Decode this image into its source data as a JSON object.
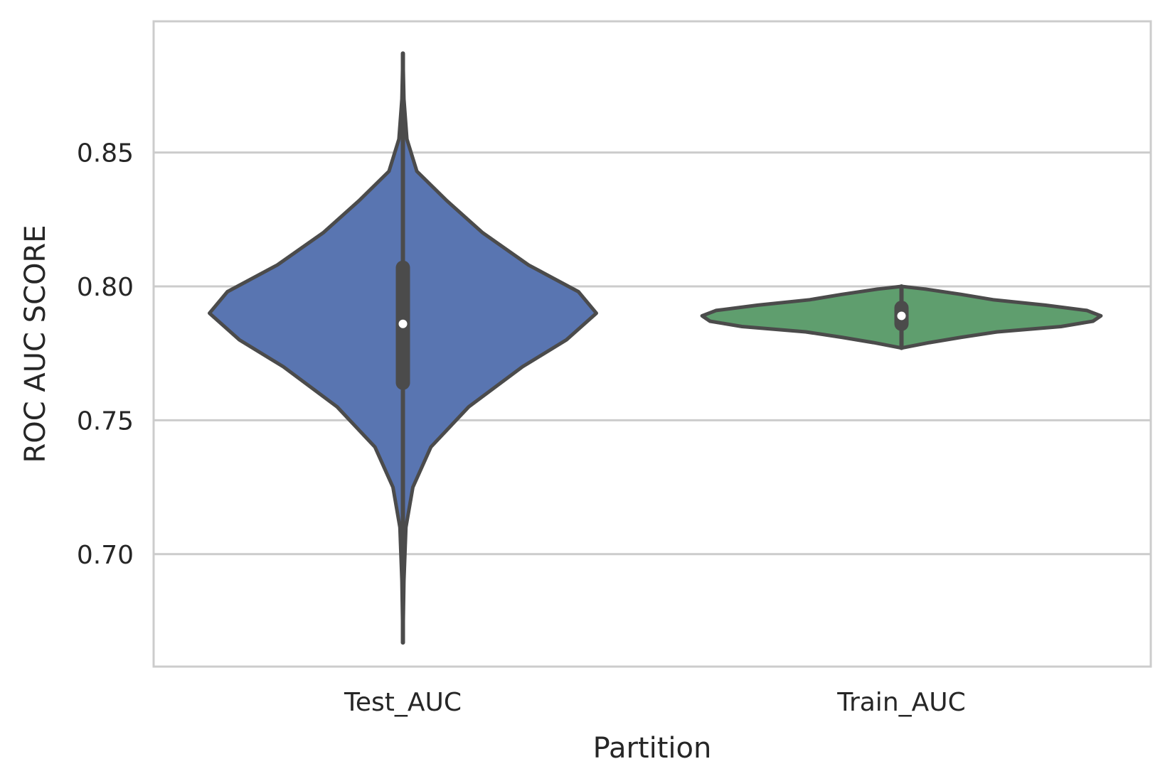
{
  "chart_data": {
    "type": "violin",
    "title": "",
    "xlabel": "Partition",
    "ylabel": "ROC AUC SCORE",
    "ylim": [
      0.658,
      0.899
    ],
    "yticks": [
      0.7,
      0.75,
      0.8,
      0.85
    ],
    "ytick_labels": [
      "0.70",
      "0.75",
      "0.80",
      "0.85"
    ],
    "grid": "horizontal",
    "legend": "none",
    "categories": [
      "Test_AUC",
      "Train_AUC"
    ],
    "violins": [
      {
        "category": "Test_AUC",
        "color": "#5975b1",
        "min": 0.667,
        "max": 0.887,
        "q1": 0.764,
        "median": 0.786,
        "q3": 0.807,
        "density": [
          [
            0.667,
            0.0
          ],
          [
            0.69,
            0.005
          ],
          [
            0.71,
            0.015
          ],
          [
            0.725,
            0.05
          ],
          [
            0.74,
            0.14
          ],
          [
            0.755,
            0.33
          ],
          [
            0.77,
            0.6
          ],
          [
            0.78,
            0.82
          ],
          [
            0.79,
            0.97
          ],
          [
            0.798,
            0.88
          ],
          [
            0.808,
            0.63
          ],
          [
            0.82,
            0.4
          ],
          [
            0.832,
            0.22
          ],
          [
            0.843,
            0.07
          ],
          [
            0.855,
            0.02
          ],
          [
            0.87,
            0.005
          ],
          [
            0.887,
            0.0
          ]
        ]
      },
      {
        "category": "Train_AUC",
        "color": "#5f9e6e",
        "min": 0.777,
        "max": 0.8,
        "q1": 0.786,
        "median": 0.789,
        "q3": 0.792,
        "density": [
          [
            0.777,
            0.0
          ],
          [
            0.779,
            0.14
          ],
          [
            0.781,
            0.3
          ],
          [
            0.783,
            0.48
          ],
          [
            0.785,
            0.8
          ],
          [
            0.787,
            0.96
          ],
          [
            0.789,
            1.0
          ],
          [
            0.791,
            0.93
          ],
          [
            0.793,
            0.72
          ],
          [
            0.795,
            0.46
          ],
          [
            0.797,
            0.3
          ],
          [
            0.799,
            0.12
          ],
          [
            0.8,
            0.0
          ]
        ]
      }
    ],
    "colors": {
      "outline": "#4b4b4b",
      "grid": "#cccccc",
      "frame": "#cccccc",
      "median_dot": "#ffffff"
    }
  }
}
